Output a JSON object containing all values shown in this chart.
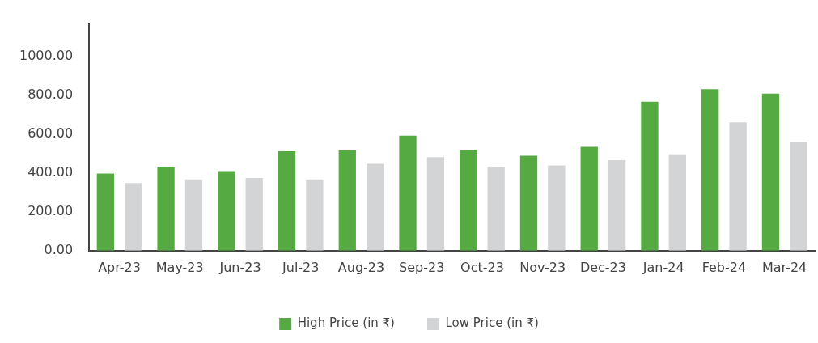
{
  "chart_data": {
    "type": "bar",
    "categories": [
      "Apr-23",
      "May-23",
      "Jun-23",
      "Jul-23",
      "Aug-23",
      "Sep-23",
      "Oct-23",
      "Nov-23",
      "Dec-23",
      "Jan-24",
      "Feb-24",
      "Mar-24"
    ],
    "series": [
      {
        "name": "High Price (in ₹)",
        "color": "#55ab42",
        "values": [
          398,
          433,
          410,
          513,
          517,
          593,
          517,
          490,
          536,
          768,
          833,
          810
        ]
      },
      {
        "name": "Low Price (in ₹)",
        "color": "#d3d4d6",
        "values": [
          349,
          368,
          375,
          368,
          448,
          482,
          433,
          440,
          467,
          497,
          662,
          562
        ]
      }
    ],
    "ylim": [
      0,
      1170
    ],
    "yticks": [
      {
        "value": 0,
        "label": "0.00"
      },
      {
        "value": 200,
        "label": "200.00"
      },
      {
        "value": 400,
        "label": "400.00"
      },
      {
        "value": 600,
        "label": "600.00"
      },
      {
        "value": 800,
        "label": "800.00"
      },
      {
        "value": 1000,
        "label": "1000.00"
      }
    ],
    "grid": false,
    "legend": "bottom"
  }
}
